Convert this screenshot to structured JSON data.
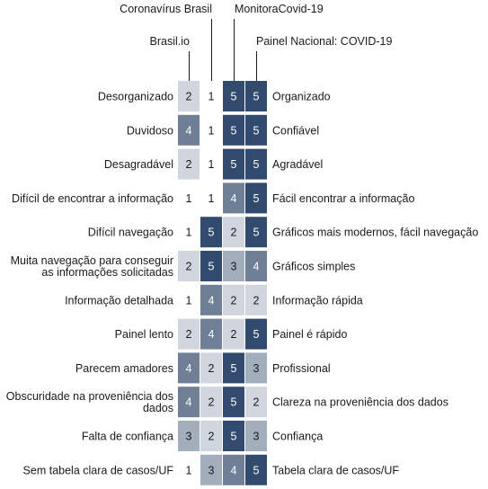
{
  "chart_data": {
    "type": "heatmap",
    "columns": [
      "Brasil.io",
      "Coronavírus Brasil",
      "MonitoraCovid-19",
      "Painel Nacional: COVID-19"
    ],
    "rows": [
      {
        "left": [
          "Desorganizado"
        ],
        "right": [
          "Organizado"
        ],
        "values": [
          2,
          1,
          5,
          5
        ]
      },
      {
        "left": [
          "Duvidoso"
        ],
        "right": [
          "Confiável"
        ],
        "values": [
          4,
          1,
          5,
          5
        ]
      },
      {
        "left": [
          "Desagradável"
        ],
        "right": [
          "Agradável"
        ],
        "values": [
          2,
          1,
          5,
          5
        ]
      },
      {
        "left": [
          "Difícil de encontrar a informação"
        ],
        "right": [
          "Fácil encontrar a informação"
        ],
        "values": [
          1,
          1,
          4,
          5
        ]
      },
      {
        "left": [
          "Difícil navegação"
        ],
        "right": [
          "Gráficos mais modernos, fácil navegação"
        ],
        "values": [
          1,
          5,
          2,
          5
        ]
      },
      {
        "left": [
          "Muita navegação para conseguir",
          "as informações solicitadas"
        ],
        "right": [
          "Gráficos simples"
        ],
        "values": [
          2,
          5,
          3,
          4
        ]
      },
      {
        "left": [
          "Informação detalhada"
        ],
        "right": [
          "Informação rápida"
        ],
        "values": [
          1,
          4,
          2,
          2
        ]
      },
      {
        "left": [
          "Painel lento"
        ],
        "right": [
          "Painel é rápido"
        ],
        "values": [
          2,
          4,
          2,
          5
        ]
      },
      {
        "left": [
          "Parecem amadores"
        ],
        "right": [
          "Profissional"
        ],
        "values": [
          4,
          2,
          5,
          3
        ]
      },
      {
        "left": [
          "Obscuridade na proveniência dos",
          "dados"
        ],
        "right": [
          "Clareza na proveniência dos dados"
        ],
        "values": [
          4,
          2,
          5,
          2
        ]
      },
      {
        "left": [
          "Falta de confiança"
        ],
        "right": [
          "Confiança"
        ],
        "values": [
          3,
          2,
          5,
          3
        ]
      },
      {
        "left": [
          "Sem tabela clara de casos/UF"
        ],
        "right": [
          "Tabela clara de casos/UF"
        ],
        "values": [
          1,
          3,
          4,
          5
        ]
      }
    ],
    "scale": [
      1,
      5
    ],
    "colors": {
      "1": "#ffffff",
      "2": "#d0d5de",
      "3": "#a3aebd",
      "4": "#6f7f96",
      "5": "#324a6e"
    }
  }
}
